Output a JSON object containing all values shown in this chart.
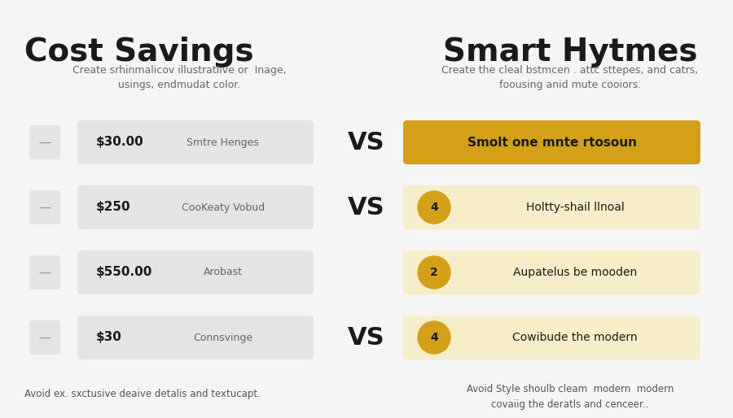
{
  "bg_color": "#f5f5f5",
  "left_title": "Cost Savings",
  "right_title": "Smart Hytmes",
  "left_subtitle": "Create srhinmalicov illustratlive or  Inage,\nusings, endmudat color.",
  "right_subtitle": "Create the cleal bstmcen . attc sttepes, and catrs,\nfoousing anid mute cooiors.",
  "vs_row_indices": [
    0,
    1,
    3
  ],
  "left_items": [
    {
      "price": "$30.00",
      "label": "Smtre Henges"
    },
    {
      "price": "$250",
      "label": "CooKeaty Vobud"
    },
    {
      "price": "$550.00",
      "label": "Arobast"
    },
    {
      "price": "$30",
      "label": "Connsvinge"
    }
  ],
  "right_items": [
    {
      "type": "full_yellow",
      "badge": "",
      "text": "Smolt one mnte rtosoun"
    },
    {
      "type": "circle_badge",
      "badge": "4",
      "text": "Holtty-shail llnoal"
    },
    {
      "type": "circle_badge",
      "badge": "2",
      "text": "Aupatelus be mooden"
    },
    {
      "type": "circle_badge",
      "badge": "4",
      "text": "Cowibude the modern"
    }
  ],
  "left_footer": "Avoid ex. sxctusive deaive detalis and textucapt.",
  "right_footer": "Avoid Style shoulb cleam  modern  modern\ncovaiig the deratls and cenceer..",
  "yellow_color": "#d4a017",
  "yellow_light": "#f5eec8",
  "gray_box": "#e4e4e4",
  "text_color": "#1a1a1a"
}
